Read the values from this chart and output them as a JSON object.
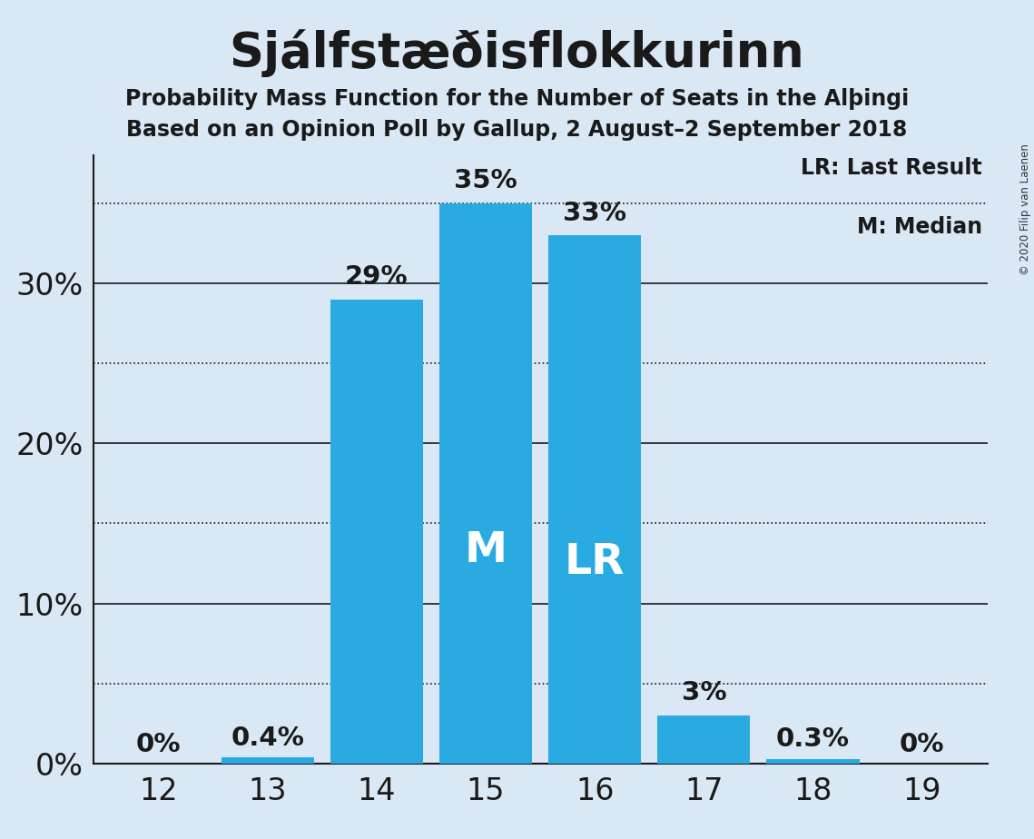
{
  "title": "Sjálfstæðisflokkurinn",
  "subtitle1": "Probability Mass Function for the Number of Seats in the Alþingi",
  "subtitle2": "Based on an Opinion Poll by Gallup, 2 August–2 September 2018",
  "copyright": "© 2020 Filip van Laenen",
  "seats": [
    12,
    13,
    14,
    15,
    16,
    17,
    18,
    19
  ],
  "probabilities": [
    0.0,
    0.4,
    29.0,
    35.0,
    33.0,
    3.0,
    0.3,
    0.0
  ],
  "labels": [
    "0%",
    "0.4%",
    "29%",
    "35%",
    "33%",
    "3%",
    "0.3%",
    "0%"
  ],
  "median_seat": 15,
  "lr_seat": 16,
  "bar_color": "#29ABE2",
  "background_color": "#DAE8F5",
  "title_color": "#1a1a1a",
  "subtitle_color": "#1a1a1a",
  "label_color_outside": "#1a1a1a",
  "axis_color": "#1a1a1a",
  "ylabel_ticks": [
    0,
    10,
    20,
    30
  ],
  "ylim": [
    0,
    38
  ],
  "legend_lr": "LR: Last Result",
  "legend_m": "M: Median",
  "dotted_gridlines": [
    5,
    15,
    25,
    35
  ],
  "solid_gridlines": [
    10,
    20,
    30
  ]
}
